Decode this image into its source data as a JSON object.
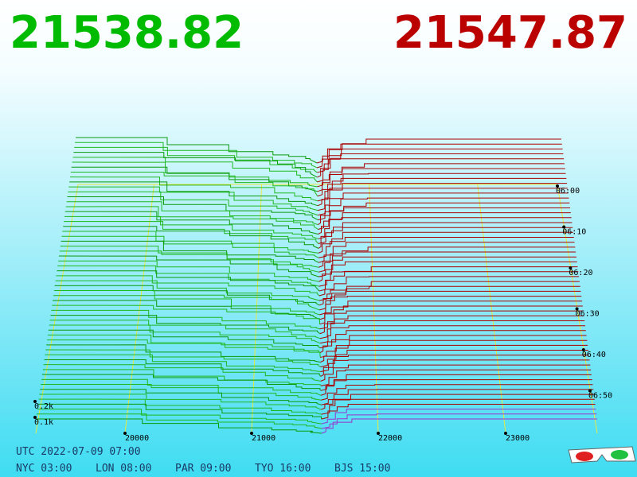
{
  "header": {
    "bid": "21538.82",
    "ask": "21547.87"
  },
  "price_axis": [
    "20000",
    "21000",
    "22000",
    "23000"
  ],
  "time_axis": [
    "06:00",
    "06:10",
    "06:20",
    "06:30",
    "06:40",
    "06:50"
  ],
  "volume_axis": [
    "0.2k",
    "0.1k"
  ],
  "footer": {
    "utc": "UTC 2022-07-09 07:00",
    "zones": [
      "NYC 03:00",
      "LON 08:00",
      "PAR 09:00",
      "TYO 16:00",
      "BJS 15:00"
    ]
  }
}
